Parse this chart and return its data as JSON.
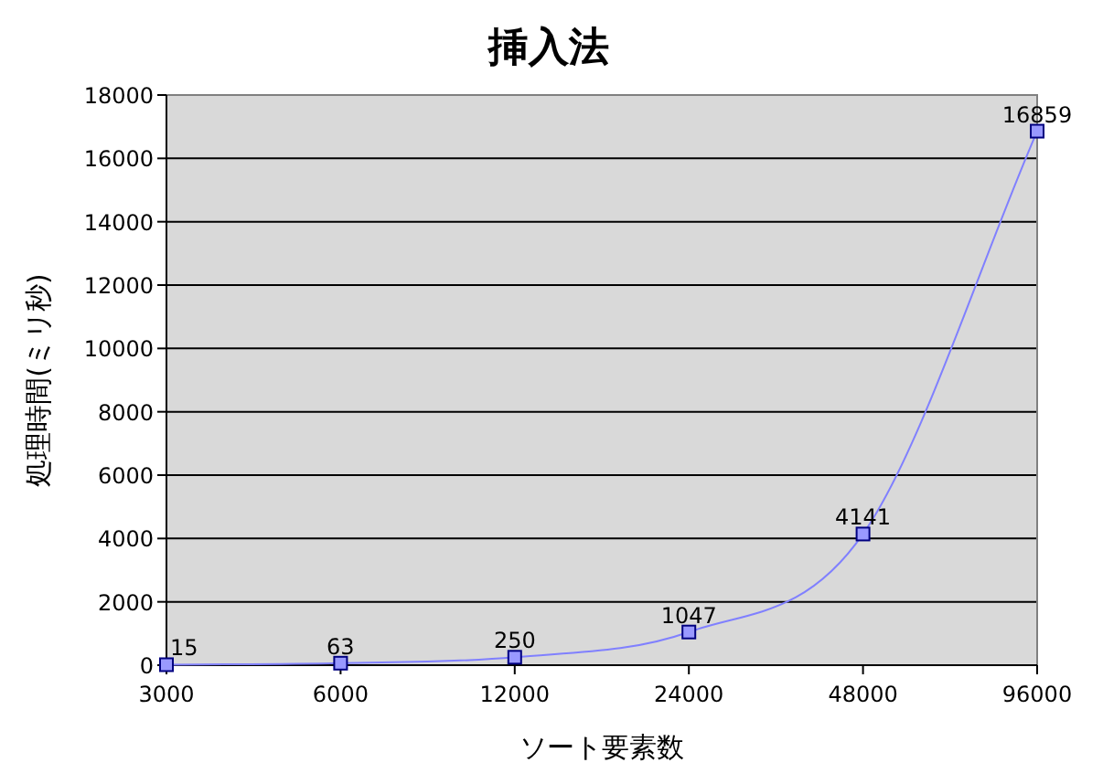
{
  "chart_data": {
    "type": "line",
    "title": "挿入法",
    "xlabel": "ソート要素数",
    "ylabel": "処理時間(ミリ秒)",
    "categories": [
      "3000",
      "6000",
      "12000",
      "24000",
      "48000",
      "96000"
    ],
    "series": [
      {
        "color": "#8080ff",
        "values": [
          15,
          63,
          250,
          1047,
          4141,
          16859
        ]
      }
    ],
    "ylim": [
      0,
      18000
    ],
    "yticks": [
      0,
      2000,
      4000,
      6000,
      8000,
      10000,
      12000,
      14000,
      16000,
      18000
    ],
    "grid": "y",
    "marker": "square",
    "data_labels": true
  }
}
